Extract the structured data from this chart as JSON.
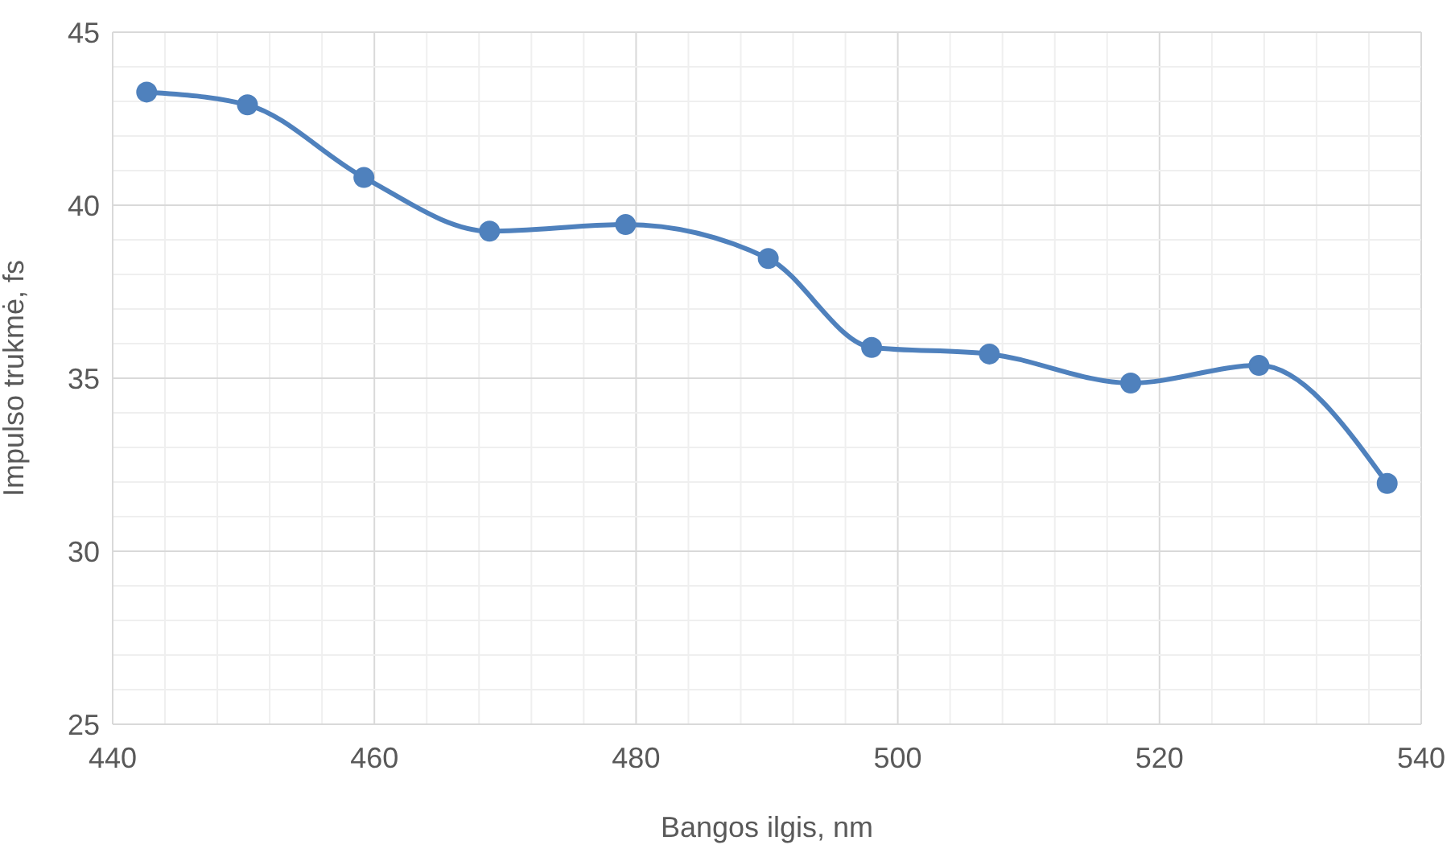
{
  "chart_data": {
    "type": "line",
    "xlabel": "Bangos ilgis, nm",
    "ylabel": "Impulso trukmė, fs",
    "x": [
      442.6,
      450.3,
      459.2,
      468.8,
      479.2,
      490.1,
      498.0,
      507.0,
      517.8,
      527.6,
      537.4
    ],
    "series": [
      {
        "color": "#4f81bd",
        "values": [
          43.27,
          42.9,
          40.8,
          39.25,
          39.44,
          38.46,
          35.89,
          35.7,
          34.86,
          35.37,
          31.96
        ]
      }
    ],
    "xlim": [
      440,
      540
    ],
    "xticks": [
      440,
      {
        "value": 444,
        "label": null
      },
      {
        "value": 448,
        "label": null
      },
      {
        "value": 452,
        "label": null
      },
      {
        "value": 456,
        "label": null
      },
      460,
      {
        "value": 464,
        "label": null
      },
      {
        "value": 468,
        "label": null
      },
      {
        "value": 472,
        "label": null
      },
      {
        "value": 476,
        "label": null
      },
      480,
      {
        "value": 484,
        "label": null
      },
      {
        "value": 488,
        "label": null
      },
      {
        "value": 492,
        "label": null
      },
      {
        "value": 496,
        "label": null
      },
      500,
      {
        "value": 504,
        "label": null
      },
      {
        "value": 508,
        "label": null
      },
      {
        "value": 512,
        "label": null
      },
      {
        "value": 516,
        "label": null
      },
      520,
      {
        "value": 524,
        "label": null
      },
      {
        "value": 528,
        "label": null
      },
      {
        "value": 532,
        "label": null
      },
      {
        "value": 536,
        "label": null
      },
      540
    ],
    "ylim": [
      25,
      45
    ],
    "yticks": [
      25,
      {
        "value": 26,
        "label": null
      },
      {
        "value": 27,
        "label": null
      },
      {
        "value": 28,
        "label": null
      },
      {
        "value": 29,
        "label": null
      },
      30,
      {
        "value": 31,
        "label": null
      },
      {
        "value": 32,
        "label": null
      },
      {
        "value": 33,
        "label": null
      },
      {
        "value": 34,
        "label": null
      },
      35,
      {
        "value": 36,
        "label": null
      },
      {
        "value": 37,
        "label": null
      },
      {
        "value": 38,
        "label": null
      },
      {
        "value": 39,
        "label": null
      },
      40,
      {
        "value": 41,
        "label": null
      },
      {
        "value": 42,
        "label": null
      },
      {
        "value": 43,
        "label": null
      },
      {
        "value": 44,
        "label": null
      },
      45
    ],
    "grid": true,
    "marker": "circle",
    "line_style": "solid"
  }
}
